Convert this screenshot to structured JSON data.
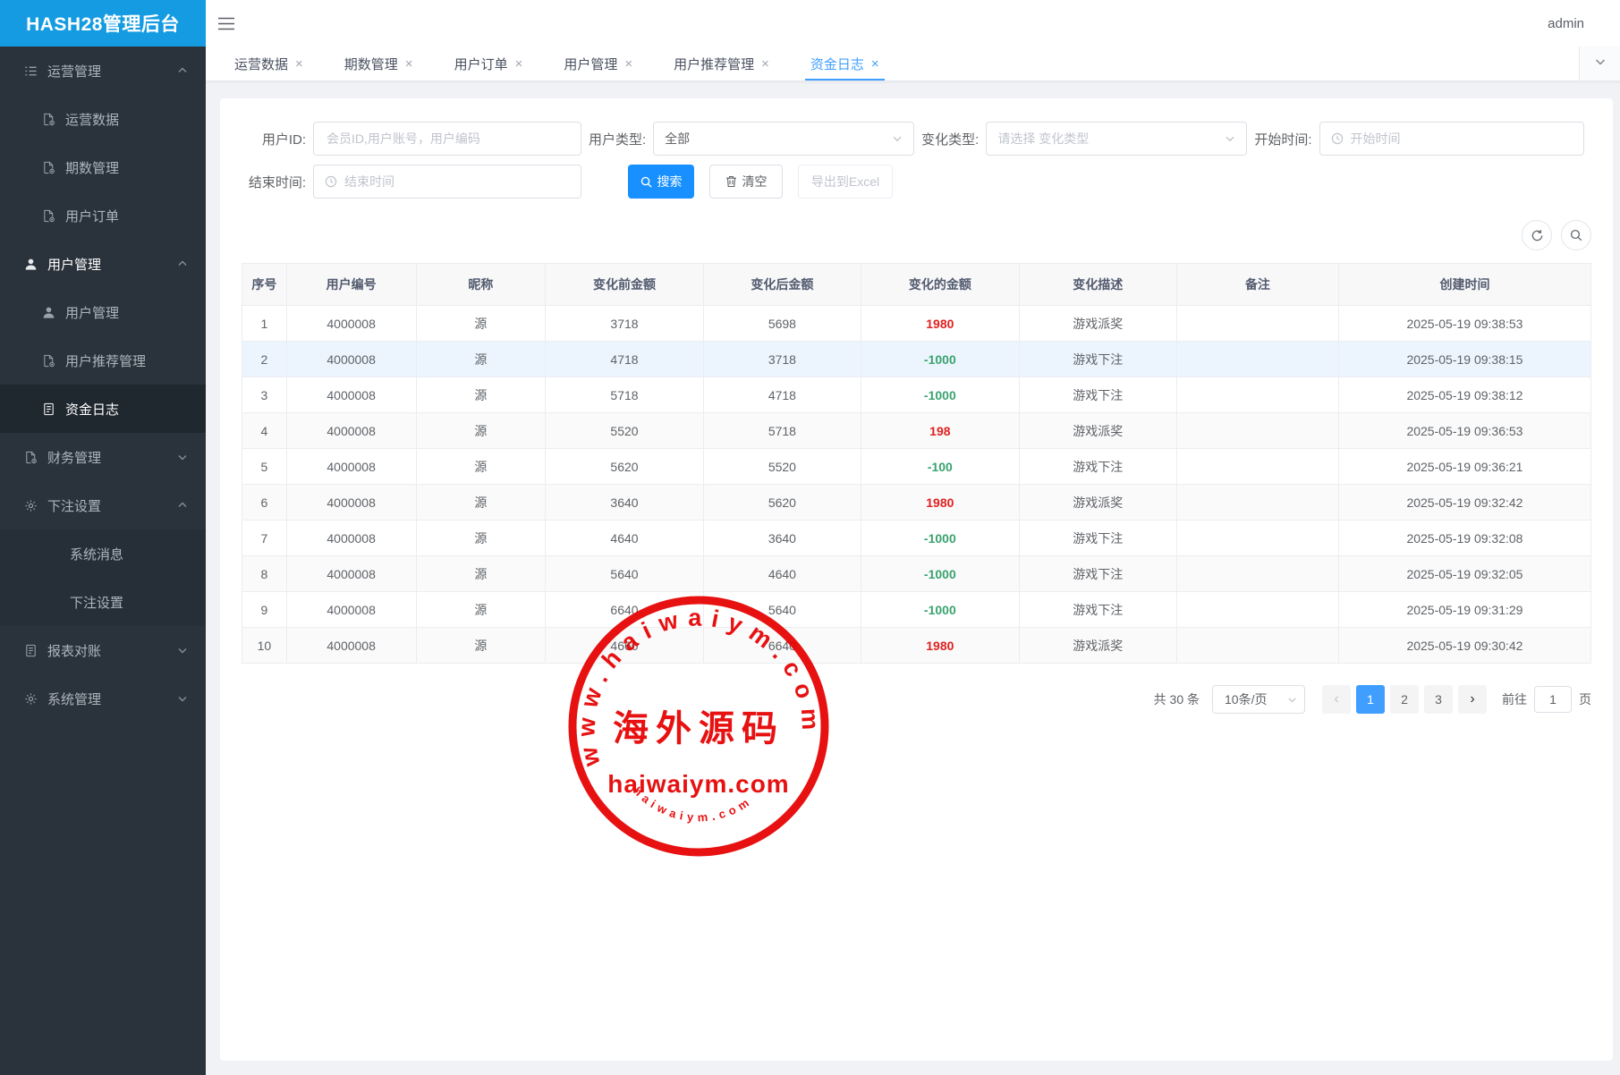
{
  "app": {
    "title": "HASH28管理后台",
    "user": "admin"
  },
  "sidebar": {
    "items": [
      {
        "label": "运营管理",
        "icon": "list-icon",
        "level": 1,
        "arrow": "up"
      },
      {
        "label": "运营数据",
        "icon": "doc-gear-icon",
        "level": 2
      },
      {
        "label": "期数管理",
        "icon": "doc-gear-icon",
        "level": 2
      },
      {
        "label": "用户订单",
        "icon": "doc-gear-icon",
        "level": 2
      },
      {
        "label": "用户管理",
        "icon": "user-icon",
        "level": 1,
        "arrow": "up",
        "highlight": true
      },
      {
        "label": "用户管理",
        "icon": "user-icon",
        "level": 2
      },
      {
        "label": "用户推荐管理",
        "icon": "doc-gear-icon",
        "level": 2
      },
      {
        "label": "资金日志",
        "icon": "doc-icon",
        "level": 2,
        "active": true
      },
      {
        "label": "财务管理",
        "icon": "doc-gear-icon",
        "level": 1,
        "arrow": "down"
      },
      {
        "label": "下注设置",
        "icon": "gear-icon",
        "level": 1,
        "arrow": "up"
      },
      {
        "label": "系统消息",
        "icon": null,
        "level": 3
      },
      {
        "label": "下注设置",
        "icon": null,
        "level": 3
      },
      {
        "label": "报表对账",
        "icon": "doc-icon",
        "level": 1,
        "arrow": "down"
      },
      {
        "label": "系统管理",
        "icon": "gear-icon",
        "level": 1,
        "arrow": "down"
      }
    ]
  },
  "tabs": [
    {
      "label": "运营数据"
    },
    {
      "label": "期数管理"
    },
    {
      "label": "用户订单"
    },
    {
      "label": "用户管理"
    },
    {
      "label": "用户推荐管理"
    },
    {
      "label": "资金日志",
      "active": true
    }
  ],
  "filters": {
    "user_id": {
      "label": "用户ID:",
      "placeholder": "会员ID,用户账号，用户编码"
    },
    "user_type": {
      "label": "用户类型:",
      "value": "全部"
    },
    "change_type": {
      "label": "变化类型:",
      "placeholder": "请选择 变化类型"
    },
    "start_time": {
      "label": "开始时间:",
      "placeholder": "开始时间",
      "icon": "clock-icon"
    },
    "end_time": {
      "label": "结束时间:",
      "placeholder": "结束时间",
      "icon": "clock-icon"
    },
    "search_button": "搜索",
    "clear_button": "清空",
    "export_button": "导出到Excel"
  },
  "table": {
    "columns": [
      "序号",
      "用户编号",
      "昵称",
      "变化前金额",
      "变化后金额",
      "变化的金额",
      "变化描述",
      "备注",
      "创建时间"
    ],
    "rows": [
      {
        "index": "1",
        "user_no": "4000008",
        "nickname": "源",
        "before": "3718",
        "after": "5698",
        "change": "1980",
        "change_type": "positive",
        "desc": "游戏派奖",
        "remark": "",
        "created": "2025-05-19 09:38:53"
      },
      {
        "index": "2",
        "user_no": "4000008",
        "nickname": "源",
        "before": "4718",
        "after": "3718",
        "change": "-1000",
        "change_type": "negative",
        "desc": "游戏下注",
        "remark": "",
        "created": "2025-05-19 09:38:15",
        "highlighted": true
      },
      {
        "index": "3",
        "user_no": "4000008",
        "nickname": "源",
        "before": "5718",
        "after": "4718",
        "change": "-1000",
        "change_type": "negative",
        "desc": "游戏下注",
        "remark": "",
        "created": "2025-05-19 09:38:12"
      },
      {
        "index": "4",
        "user_no": "4000008",
        "nickname": "源",
        "before": "5520",
        "after": "5718",
        "change": "198",
        "change_type": "positive",
        "desc": "游戏派奖",
        "remark": "",
        "created": "2025-05-19 09:36:53"
      },
      {
        "index": "5",
        "user_no": "4000008",
        "nickname": "源",
        "before": "5620",
        "after": "5520",
        "change": "-100",
        "change_type": "negative",
        "desc": "游戏下注",
        "remark": "",
        "created": "2025-05-19 09:36:21"
      },
      {
        "index": "6",
        "user_no": "4000008",
        "nickname": "源",
        "before": "3640",
        "after": "5620",
        "change": "1980",
        "change_type": "positive",
        "desc": "游戏派奖",
        "remark": "",
        "created": "2025-05-19 09:32:42"
      },
      {
        "index": "7",
        "user_no": "4000008",
        "nickname": "源",
        "before": "4640",
        "after": "3640",
        "change": "-1000",
        "change_type": "negative",
        "desc": "游戏下注",
        "remark": "",
        "created": "2025-05-19 09:32:08"
      },
      {
        "index": "8",
        "user_no": "4000008",
        "nickname": "源",
        "before": "5640",
        "after": "4640",
        "change": "-1000",
        "change_type": "negative",
        "desc": "游戏下注",
        "remark": "",
        "created": "2025-05-19 09:32:05"
      },
      {
        "index": "9",
        "user_no": "4000008",
        "nickname": "源",
        "before": "6640",
        "after": "5640",
        "change": "-1000",
        "change_type": "negative",
        "desc": "游戏下注",
        "remark": "",
        "created": "2025-05-19 09:31:29"
      },
      {
        "index": "10",
        "user_no": "4000008",
        "nickname": "源",
        "before": "4660",
        "after": "6640",
        "change": "1980",
        "change_type": "positive",
        "desc": "游戏派奖",
        "remark": "",
        "created": "2025-05-19 09:30:42"
      }
    ]
  },
  "pagination": {
    "total_text": "共 30 条",
    "page_size": "10条/页",
    "pages": [
      "1",
      "2",
      "3"
    ],
    "active_page": "1",
    "goto_label": "前往",
    "goto_value": "1",
    "goto_suffix": "页"
  },
  "watermark": {
    "top_text": "www.haiwaiym.com",
    "center_text": "海外源码",
    "main_text": "haiwaiym.com",
    "bottom_text": "haiwaiym.com",
    "color": "#e60000"
  },
  "colors": {
    "primary": "#409eff",
    "logo_bg": "#149be1",
    "positive": "#e02020",
    "negative": "#39a36f"
  }
}
